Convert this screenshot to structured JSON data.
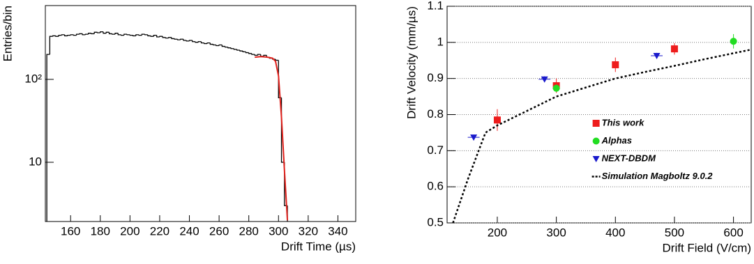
{
  "chart_data": [
    {
      "type": "histogram",
      "xlabel": "Drift Time (µs)",
      "ylabel": "Entries/bin",
      "xlim": [
        143,
        352
      ],
      "xticks": [
        160,
        180,
        200,
        220,
        240,
        260,
        280,
        300,
        320,
        340
      ],
      "ylim": [
        1.93,
        776
      ],
      "yticks": [
        10,
        {
          "value": 100,
          "label": "10²"
        }
      ],
      "log_y": true,
      "grid": false,
      "bins": [
        144,
        146,
        148,
        150,
        152,
        154,
        156,
        158,
        160,
        162,
        164,
        166,
        168,
        170,
        172,
        174,
        176,
        178,
        180,
        182,
        184,
        186,
        188,
        190,
        192,
        194,
        196,
        198,
        200,
        202,
        204,
        206,
        208,
        210,
        212,
        214,
        216,
        218,
        220,
        222,
        224,
        226,
        228,
        230,
        232,
        234,
        236,
        238,
        240,
        242,
        244,
        246,
        248,
        250,
        252,
        254,
        256,
        258,
        260,
        262,
        264,
        266,
        268,
        270,
        272,
        274,
        276,
        278,
        280,
        282,
        284,
        286,
        288,
        290,
        292,
        294,
        296,
        298,
        300,
        302,
        304,
        306
      ],
      "counts": [
        200,
        330,
        335,
        330,
        340,
        345,
        335,
        340,
        345,
        340,
        350,
        355,
        345,
        350,
        360,
        355,
        370,
        365,
        375,
        360,
        370,
        355,
        350,
        360,
        345,
        340,
        350,
        345,
        340,
        335,
        345,
        340,
        350,
        345,
        335,
        330,
        340,
        325,
        330,
        320,
        315,
        320,
        310,
        305,
        300,
        305,
        295,
        290,
        295,
        285,
        280,
        285,
        275,
        270,
        275,
        265,
        260,
        255,
        260,
        250,
        245,
        240,
        235,
        230,
        225,
        220,
        215,
        210,
        205,
        200,
        195,
        200,
        190,
        195,
        185,
        180,
        175,
        170,
        60,
        10,
        3
      ],
      "color": "#000000",
      "fit": {
        "color": "#e0201b",
        "x": [
          284,
          288,
          292,
          296,
          298,
          300,
          302,
          304,
          306
        ],
        "values": [
          185,
          188,
          186,
          180,
          165,
          110,
          35,
          8,
          2
        ]
      }
    },
    {
      "type": "scatter",
      "xlabel": "Drift Field (V/cm)",
      "ylabel": "Drift Velocity (mm/µs)",
      "xlim": [
        115,
        630
      ],
      "xticks": [
        200,
        300,
        400,
        500,
        600
      ],
      "ylim": [
        0.5,
        1.1
      ],
      "yticks": [
        0.5,
        0.6,
        0.7,
        0.8,
        0.9,
        1,
        1.1
      ],
      "grid": true,
      "legend": "center-right",
      "series": [
        {
          "name": "This work",
          "color": "#ee1c1c",
          "marker": "square",
          "x": [
            200,
            300,
            400,
            500
          ],
          "values": [
            0.785,
            0.88,
            0.938,
            0.982
          ],
          "yerr": [
            0.03,
            0.02,
            0.02,
            0.016
          ]
        },
        {
          "name": "Alphas",
          "color": "#22dd22",
          "marker": "circle",
          "x": [
            300,
            600
          ],
          "values": [
            0.873,
            1.003
          ],
          "yerr": [
            0.01,
            0.02
          ]
        },
        {
          "name": "NEXT-DBDM",
          "color": "#1a1acc",
          "marker": "triangle",
          "x": [
            160,
            280,
            470
          ],
          "values": [
            0.737,
            0.898,
            0.963
          ],
          "xerr": [
            10,
            10,
            10
          ],
          "yerr": [
            0.005,
            0.008,
            0.008
          ]
        },
        {
          "name": "Simulation Magboltz 9.0.2",
          "color": "#000000",
          "marker": "dashed-line",
          "x": [
            125,
            150,
            180,
            200,
            250,
            300,
            350,
            400,
            450,
            500,
            550,
            600,
            630
          ],
          "values": [
            0.5,
            0.62,
            0.75,
            0.77,
            0.81,
            0.85,
            0.875,
            0.9,
            0.918,
            0.935,
            0.953,
            0.97,
            0.98
          ]
        }
      ]
    }
  ]
}
